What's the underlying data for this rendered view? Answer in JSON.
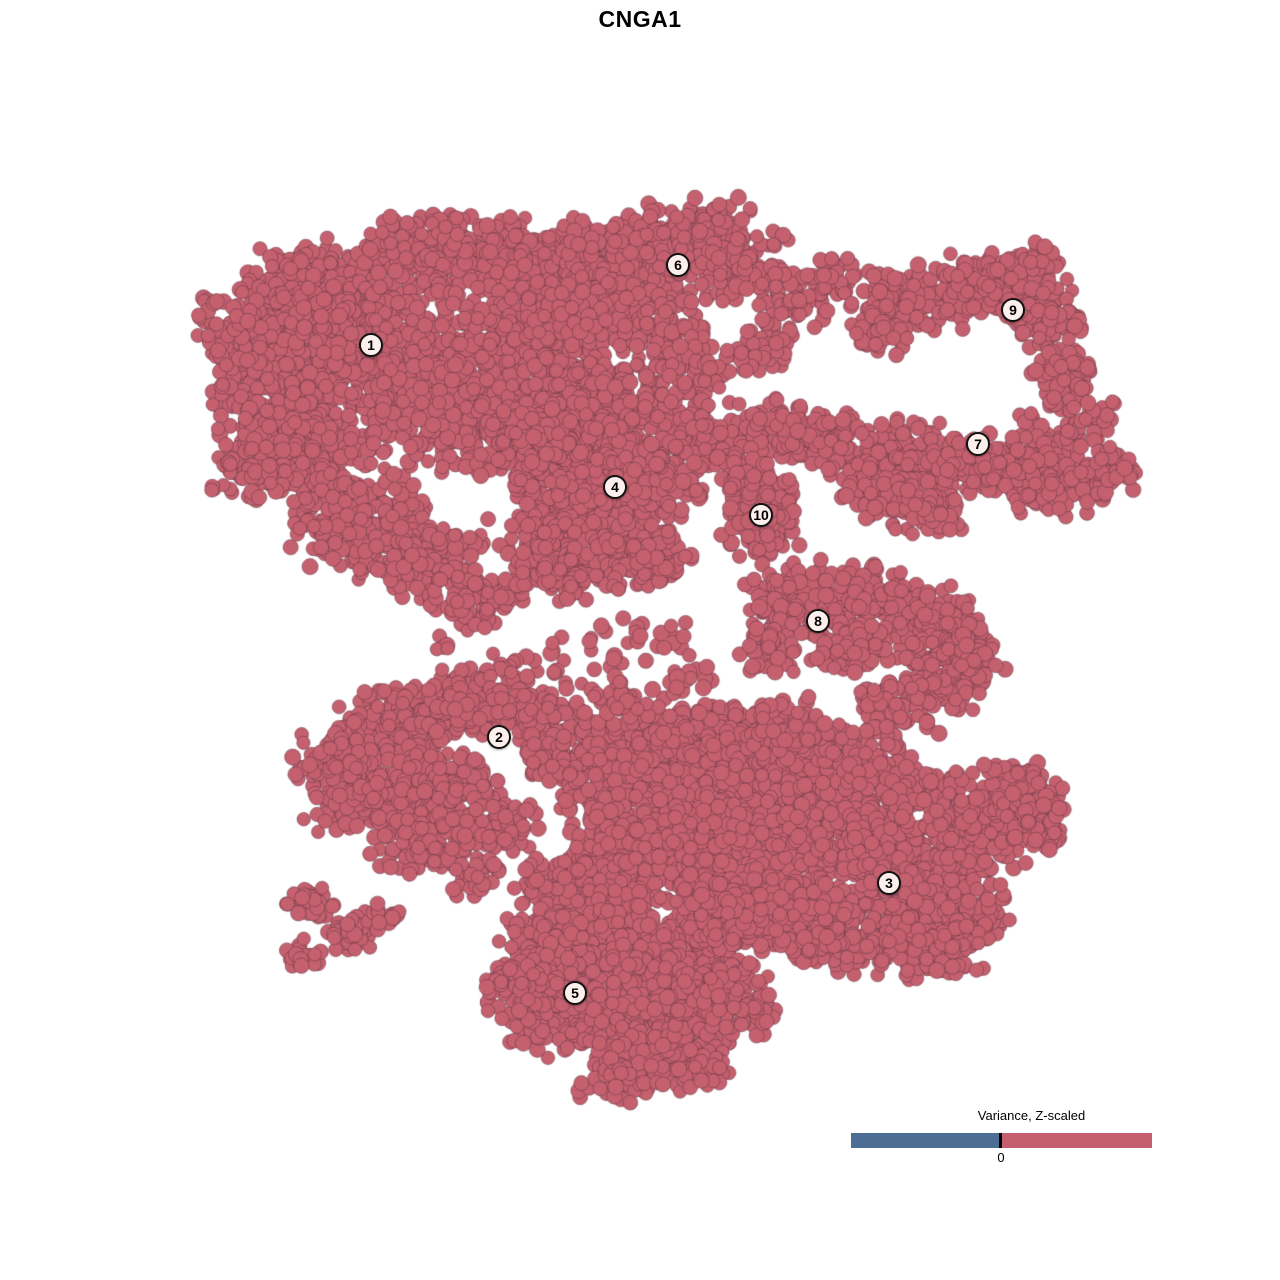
{
  "title": "CNGA1",
  "legend": {
    "title": "Variance, Z-scaled",
    "tick_label": "0",
    "negative_color": "#4c6d94",
    "positive_color": "#c55f6f"
  },
  "point_style": {
    "fill": "#c5606f",
    "stroke": "rgba(93,54,66,0.50)",
    "radius_min": 6.6,
    "radius_max": 8.2
  },
  "chart_data": {
    "type": "scatter",
    "title": "CNGA1",
    "legend_title": "Variance, Z-scaled",
    "legend_ticks": [
      "0"
    ],
    "xlim": [
      0,
      1280
    ],
    "ylim": [
      0,
      1280
    ],
    "grid": false,
    "note_all_points_positive_color": "#c5606f",
    "cluster_labels": [
      {
        "label": "1",
        "x": 371,
        "y": 345
      },
      {
        "label": "2",
        "x": 499,
        "y": 737
      },
      {
        "label": "3",
        "x": 889,
        "y": 883
      },
      {
        "label": "4",
        "x": 615,
        "y": 487
      },
      {
        "label": "5",
        "x": 575,
        "y": 993
      },
      {
        "label": "6",
        "x": 678,
        "y": 265
      },
      {
        "label": "7",
        "x": 978,
        "y": 444
      },
      {
        "label": "8",
        "x": 818,
        "y": 621
      },
      {
        "label": "9",
        "x": 1013,
        "y": 310
      },
      {
        "label": "10",
        "x": 761,
        "y": 515
      }
    ],
    "blobs": [
      [
        335,
        285,
        95,
        50,
        260
      ],
      [
        455,
        255,
        100,
        45,
        260
      ],
      [
        560,
        270,
        80,
        45,
        200
      ],
      [
        370,
        350,
        120,
        75,
        520
      ],
      [
        295,
        345,
        70,
        60,
        200
      ],
      [
        250,
        390,
        50,
        55,
        110
      ],
      [
        310,
        440,
        80,
        65,
        260
      ],
      [
        360,
        520,
        75,
        60,
        240
      ],
      [
        450,
        410,
        85,
        65,
        300
      ],
      [
        520,
        340,
        80,
        55,
        240
      ],
      [
        540,
        430,
        70,
        50,
        180
      ],
      [
        430,
        560,
        60,
        45,
        140
      ],
      [
        470,
        600,
        50,
        35,
        80
      ],
      [
        250,
        470,
        45,
        45,
        70
      ],
      [
        230,
        330,
        40,
        45,
        70
      ],
      [
        640,
        260,
        80,
        50,
        220
      ],
      [
        700,
        235,
        60,
        40,
        120
      ],
      [
        600,
        320,
        70,
        45,
        150
      ],
      [
        660,
        330,
        60,
        40,
        100
      ],
      [
        745,
        270,
        55,
        40,
        90
      ],
      [
        800,
        300,
        50,
        40,
        60
      ],
      [
        838,
        275,
        30,
        25,
        25
      ],
      [
        590,
        390,
        70,
        45,
        150
      ],
      [
        660,
        400,
        55,
        38,
        90
      ],
      [
        715,
        440,
        55,
        38,
        90
      ],
      [
        780,
        430,
        50,
        35,
        80
      ],
      [
        830,
        440,
        45,
        32,
        70
      ],
      [
        760,
        350,
        40,
        30,
        40
      ],
      [
        700,
        370,
        35,
        28,
        35
      ],
      [
        915,
        300,
        55,
        38,
        130
      ],
      [
        990,
        285,
        55,
        33,
        120
      ],
      [
        1045,
        315,
        40,
        35,
        100
      ],
      [
        1062,
        375,
        32,
        40,
        90
      ],
      [
        1030,
        270,
        40,
        28,
        70
      ],
      [
        880,
        330,
        35,
        28,
        50
      ],
      [
        1045,
        440,
        35,
        28,
        45
      ],
      [
        1090,
        420,
        28,
        24,
        30
      ],
      [
        905,
        455,
        65,
        38,
        150
      ],
      [
        985,
        465,
        60,
        35,
        150
      ],
      [
        1055,
        485,
        55,
        33,
        120
      ],
      [
        1105,
        470,
        35,
        28,
        60
      ],
      [
        870,
        490,
        45,
        30,
        70
      ],
      [
        930,
        510,
        45,
        30,
        60
      ],
      [
        590,
        480,
        85,
        70,
        500
      ],
      [
        560,
        560,
        65,
        50,
        220
      ],
      [
        640,
        550,
        55,
        45,
        160
      ],
      [
        525,
        445,
        50,
        45,
        150
      ],
      [
        660,
        480,
        50,
        40,
        120
      ],
      [
        762,
        520,
        42,
        50,
        160
      ],
      [
        742,
        475,
        30,
        25,
        40
      ],
      [
        795,
        600,
        55,
        42,
        150
      ],
      [
        865,
        595,
        55,
        38,
        130
      ],
      [
        930,
        625,
        55,
        42,
        140
      ],
      [
        945,
        675,
        50,
        38,
        110
      ],
      [
        895,
        705,
        45,
        32,
        80
      ],
      [
        975,
        645,
        35,
        30,
        60
      ],
      [
        850,
        650,
        40,
        30,
        70
      ],
      [
        770,
        650,
        35,
        28,
        50
      ],
      [
        560,
        655,
        80,
        40,
        25
      ],
      [
        660,
        640,
        60,
        35,
        20
      ],
      [
        445,
        645,
        15,
        12,
        6
      ],
      [
        510,
        665,
        20,
        15,
        8
      ],
      [
        395,
        725,
        70,
        45,
        180
      ],
      [
        470,
        705,
        60,
        40,
        150
      ],
      [
        540,
        715,
        45,
        32,
        90
      ],
      [
        370,
        790,
        75,
        50,
        220
      ],
      [
        450,
        785,
        55,
        40,
        130
      ],
      [
        420,
        845,
        55,
        32,
        100
      ],
      [
        495,
        825,
        45,
        30,
        70
      ],
      [
        330,
        755,
        40,
        30,
        60
      ],
      [
        545,
        760,
        35,
        28,
        50
      ],
      [
        310,
        900,
        28,
        22,
        40
      ],
      [
        350,
        935,
        32,
        26,
        50
      ],
      [
        305,
        955,
        22,
        18,
        25
      ],
      [
        390,
        915,
        18,
        15,
        15
      ],
      [
        620,
        760,
        85,
        55,
        300
      ],
      [
        700,
        745,
        75,
        50,
        260
      ],
      [
        770,
        780,
        85,
        55,
        300
      ],
      [
        650,
        840,
        90,
        62,
        420
      ],
      [
        750,
        860,
        85,
        58,
        380
      ],
      [
        580,
        900,
        75,
        55,
        280
      ],
      [
        660,
        950,
        85,
        60,
        400
      ],
      [
        590,
        1000,
        85,
        60,
        400
      ],
      [
        655,
        1045,
        70,
        45,
        220
      ],
      [
        715,
        1005,
        65,
        48,
        220
      ],
      [
        840,
        820,
        75,
        52,
        280
      ],
      [
        905,
        865,
        75,
        52,
        300
      ],
      [
        955,
        905,
        60,
        45,
        180
      ],
      [
        985,
        835,
        55,
        42,
        160
      ],
      [
        1020,
        790,
        45,
        35,
        100
      ],
      [
        935,
        950,
        55,
        35,
        120
      ],
      [
        865,
        935,
        65,
        42,
        160
      ],
      [
        795,
        920,
        60,
        45,
        160
      ],
      [
        730,
        910,
        60,
        45,
        160
      ],
      [
        620,
        1080,
        45,
        25,
        60
      ],
      [
        700,
        1070,
        40,
        25,
        50
      ],
      [
        545,
        950,
        50,
        40,
        120
      ],
      [
        520,
        990,
        40,
        35,
        80
      ],
      [
        1040,
        830,
        30,
        28,
        50
      ],
      [
        860,
        760,
        60,
        40,
        120
      ],
      [
        930,
        800,
        50,
        38,
        110
      ],
      [
        790,
        730,
        50,
        35,
        90
      ],
      [
        620,
        700,
        40,
        25,
        30
      ],
      [
        690,
        680,
        25,
        20,
        15
      ],
      [
        480,
        875,
        35,
        25,
        40
      ]
    ]
  }
}
